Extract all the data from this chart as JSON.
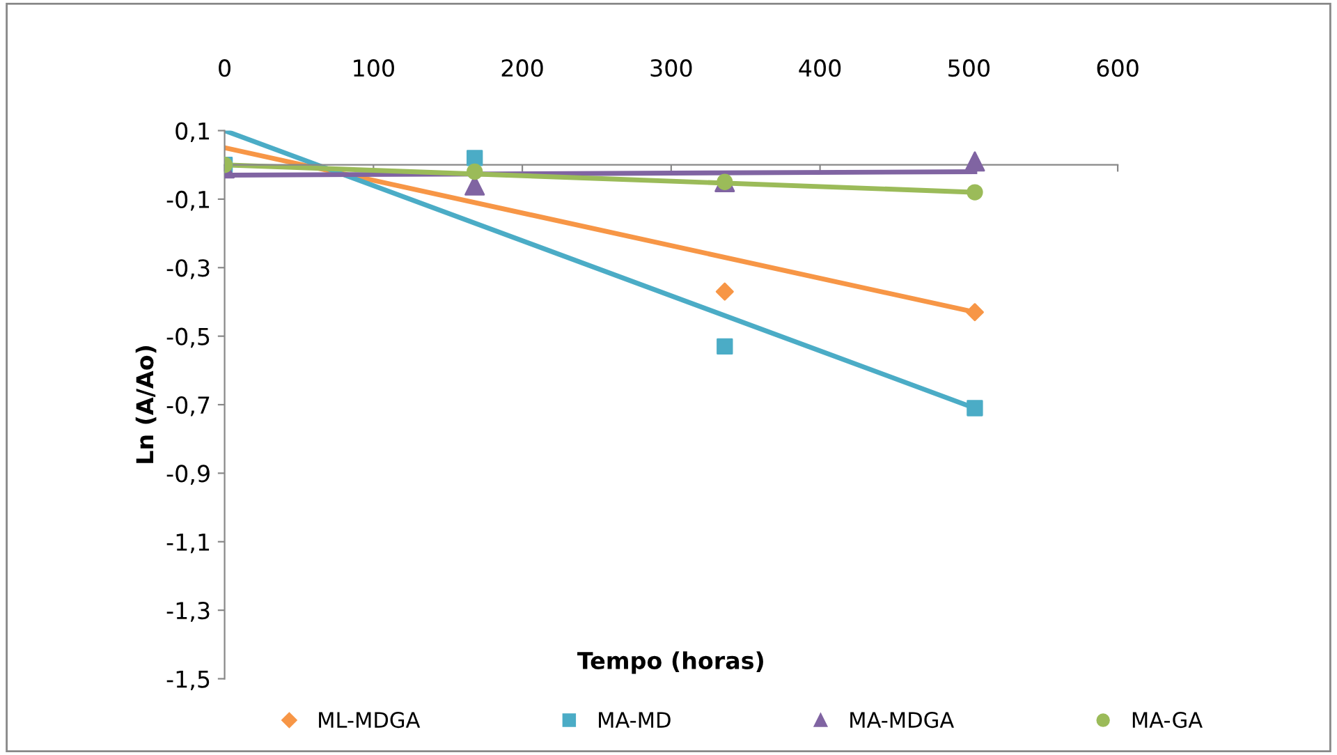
{
  "chart_data": {
    "type": "scatter",
    "xlabel": "Tempo (horas)",
    "ylabel": "Ln (A/Ao)",
    "xlim": [
      0,
      600
    ],
    "xticks": [
      0,
      100,
      200,
      300,
      400,
      500,
      600
    ],
    "ylim": [
      -1.5,
      0.1
    ],
    "yticks": [
      {
        "value": 0.1,
        "label": "0,1"
      },
      {
        "value": -0.1,
        "label": "-0,1"
      },
      {
        "value": -0.3,
        "label": "-0,3"
      },
      {
        "value": -0.5,
        "label": "-0,5"
      },
      {
        "value": -0.7,
        "label": "-0,7"
      },
      {
        "value": -0.9,
        "label": "-0,9"
      },
      {
        "value": -1.1,
        "label": "-1,1"
      },
      {
        "value": -1.3,
        "label": "-1,3"
      },
      {
        "value": -1.5,
        "label": "-1,5"
      }
    ],
    "grid": false,
    "legend": "bottom",
    "series": [
      {
        "name": "ML-MDGA",
        "marker": "diamond",
        "color": "#f79646",
        "x": [
          336,
          504
        ],
        "values": [
          -0.37,
          -0.43
        ]
      },
      {
        "name": "MA-MD",
        "marker": "square",
        "color": "#4bacc6",
        "x": [
          0,
          168,
          336,
          504
        ],
        "values": [
          0,
          0.02,
          -0.53,
          -0.71
        ]
      },
      {
        "name": "MA-MDGA",
        "marker": "triangle",
        "color": "#8064a2",
        "x": [
          0,
          168,
          336,
          504
        ],
        "values": [
          -0.01,
          -0.06,
          -0.05,
          0.01
        ]
      },
      {
        "name": "MA-GA",
        "marker": "circle",
        "color": "#9bbb59",
        "x": [
          0,
          168,
          336,
          504
        ],
        "values": [
          0,
          -0.02,
          -0.05,
          -0.08
        ]
      },
      {
        "type": "line",
        "color": "#f79646",
        "x": [
          0,
          504
        ],
        "values": [
          0.05,
          -0.43
        ]
      },
      {
        "type": "line",
        "color": "#4bacc6",
        "x": [
          0,
          504
        ],
        "values": [
          0.1,
          -0.71
        ]
      },
      {
        "type": "line",
        "color": "#8064a2",
        "x": [
          0,
          504
        ],
        "values": [
          -0.03,
          -0.02
        ]
      },
      {
        "type": "line",
        "color": "#9bbb59",
        "x": [
          0,
          504
        ],
        "values": [
          0.0,
          -0.08
        ]
      }
    ]
  }
}
